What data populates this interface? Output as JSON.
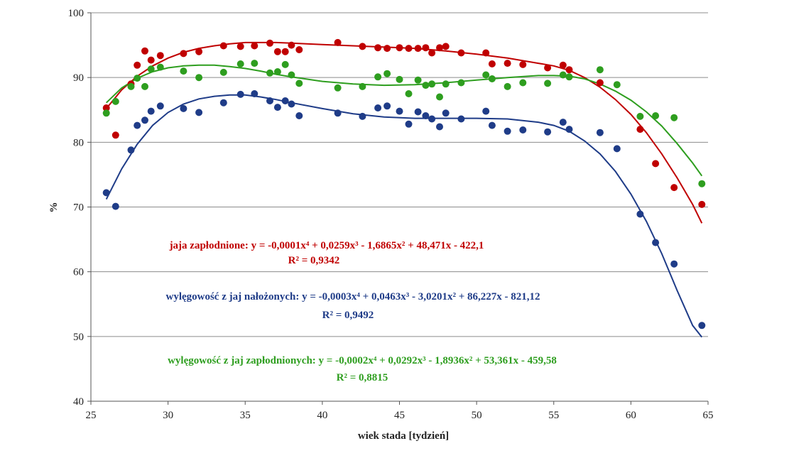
{
  "chart_data": {
    "type": "scatter",
    "title": "",
    "xlabel": "wiek stada [tydzień]",
    "ylabel": "%",
    "xlim": [
      25,
      65
    ],
    "ylim": [
      40,
      100
    ],
    "xticks": [
      25,
      30,
      35,
      40,
      45,
      50,
      55,
      60,
      65
    ],
    "yticks": [
      40,
      50,
      60,
      70,
      80,
      90,
      100
    ],
    "grid": "horizontal",
    "legend": "none",
    "series": [
      {
        "id": "red",
        "color": "#c00000",
        "equation": "jaja zapłodnione: y = -0,0001x⁴ + 0,0259x³ - 1,6865x² + 48,471x - 422,1",
        "r2": "R² = 0,9342",
        "coefficients": [
          -0.0001,
          0.0259,
          -1.6865,
          48.471,
          -422.1
        ],
        "points": [
          [
            26.0,
            85.3
          ],
          [
            26.6,
            81.1
          ],
          [
            27.6,
            89.0
          ],
          [
            28.0,
            91.9
          ],
          [
            28.5,
            94.1
          ],
          [
            28.9,
            92.7
          ],
          [
            29.5,
            93.4
          ],
          [
            31.0,
            93.7
          ],
          [
            32.0,
            94.0
          ],
          [
            33.6,
            94.9
          ],
          [
            34.7,
            94.8
          ],
          [
            35.6,
            94.9
          ],
          [
            36.6,
            95.3
          ],
          [
            37.1,
            94.0
          ],
          [
            37.6,
            94.0
          ],
          [
            38.0,
            95.0
          ],
          [
            38.5,
            94.3
          ],
          [
            41.0,
            95.4
          ],
          [
            42.6,
            94.8
          ],
          [
            43.6,
            94.6
          ],
          [
            44.2,
            94.5
          ],
          [
            45.0,
            94.6
          ],
          [
            45.6,
            94.5
          ],
          [
            46.2,
            94.5
          ],
          [
            46.7,
            94.6
          ],
          [
            47.1,
            93.8
          ],
          [
            47.6,
            94.6
          ],
          [
            48.0,
            94.8
          ],
          [
            49.0,
            93.8
          ],
          [
            50.6,
            93.8
          ],
          [
            51.0,
            92.1
          ],
          [
            52.0,
            92.2
          ],
          [
            53.0,
            92.0
          ],
          [
            54.6,
            91.5
          ],
          [
            55.6,
            91.9
          ],
          [
            56.0,
            91.2
          ],
          [
            58.0,
            89.2
          ],
          [
            60.6,
            82.0
          ],
          [
            61.6,
            76.7
          ],
          [
            62.8,
            73.0
          ],
          [
            64.6,
            70.4
          ]
        ]
      },
      {
        "id": "blue",
        "color": "#1f3c88",
        "equation": "wylęgowość z jaj nałożonych: y = -0,0003x⁴ + 0,0463x³ - 3,0201x² + 86,227x - 821,12",
        "r2": "R² = 0,9492",
        "coefficients": [
          -0.0003,
          0.0463,
          -3.0201,
          86.227,
          -821.12
        ],
        "points": [
          [
            26.0,
            72.2
          ],
          [
            26.6,
            70.1
          ],
          [
            27.6,
            78.8
          ],
          [
            28.0,
            82.6
          ],
          [
            28.5,
            83.4
          ],
          [
            28.9,
            84.8
          ],
          [
            29.5,
            85.6
          ],
          [
            31.0,
            85.2
          ],
          [
            32.0,
            84.6
          ],
          [
            33.6,
            86.1
          ],
          [
            34.7,
            87.4
          ],
          [
            35.6,
            87.5
          ],
          [
            36.6,
            86.4
          ],
          [
            37.1,
            85.4
          ],
          [
            37.6,
            86.4
          ],
          [
            38.0,
            85.9
          ],
          [
            38.5,
            84.1
          ],
          [
            41.0,
            84.5
          ],
          [
            42.6,
            84.0
          ],
          [
            43.6,
            85.3
          ],
          [
            44.2,
            85.6
          ],
          [
            45.0,
            84.8
          ],
          [
            45.6,
            82.8
          ],
          [
            46.2,
            84.7
          ],
          [
            46.7,
            84.1
          ],
          [
            47.1,
            83.6
          ],
          [
            47.6,
            82.4
          ],
          [
            48.0,
            84.5
          ],
          [
            49.0,
            83.6
          ],
          [
            50.6,
            84.8
          ],
          [
            51.0,
            82.6
          ],
          [
            52.0,
            81.7
          ],
          [
            53.0,
            81.9
          ],
          [
            54.6,
            81.6
          ],
          [
            55.6,
            83.1
          ],
          [
            56.0,
            82.0
          ],
          [
            58.0,
            81.5
          ],
          [
            59.1,
            79.0
          ],
          [
            60.6,
            68.9
          ],
          [
            61.6,
            64.5
          ],
          [
            62.8,
            61.2
          ],
          [
            64.6,
            51.7
          ]
        ]
      },
      {
        "id": "green",
        "color": "#2e9e1f",
        "equation": "wylęgowość z jaj zapłodnionych: y = -0,0002x⁴ + 0,0292x³ - 1,8936x² + 53,361x - 459,58",
        "r2": "R² = 0,8815",
        "coefficients": [
          -0.0002,
          0.0292,
          -1.8936,
          53.361,
          -459.58
        ],
        "points": [
          [
            26.0,
            84.5
          ],
          [
            26.6,
            86.3
          ],
          [
            27.6,
            88.6
          ],
          [
            28.0,
            89.9
          ],
          [
            28.5,
            88.6
          ],
          [
            28.9,
            91.3
          ],
          [
            29.5,
            91.6
          ],
          [
            31.0,
            91.0
          ],
          [
            32.0,
            90.0
          ],
          [
            33.6,
            90.8
          ],
          [
            34.7,
            92.1
          ],
          [
            35.6,
            92.2
          ],
          [
            36.6,
            90.7
          ],
          [
            37.1,
            90.9
          ],
          [
            37.6,
            92.0
          ],
          [
            38.0,
            90.4
          ],
          [
            38.5,
            89.1
          ],
          [
            41.0,
            88.4
          ],
          [
            42.6,
            88.6
          ],
          [
            43.6,
            90.1
          ],
          [
            44.2,
            90.6
          ],
          [
            45.0,
            89.7
          ],
          [
            45.6,
            87.5
          ],
          [
            46.2,
            89.6
          ],
          [
            46.7,
            88.8
          ],
          [
            47.1,
            89.0
          ],
          [
            47.6,
            87.0
          ],
          [
            48.0,
            89.0
          ],
          [
            49.0,
            89.2
          ],
          [
            50.6,
            90.4
          ],
          [
            51.0,
            89.8
          ],
          [
            52.0,
            88.6
          ],
          [
            53.0,
            89.2
          ],
          [
            54.6,
            89.1
          ],
          [
            55.6,
            90.4
          ],
          [
            56.0,
            90.1
          ],
          [
            58.0,
            91.2
          ],
          [
            59.1,
            88.9
          ],
          [
            60.6,
            84.0
          ],
          [
            61.6,
            84.1
          ],
          [
            62.8,
            83.8
          ],
          [
            64.6,
            73.6
          ]
        ]
      }
    ],
    "fit_lines": {
      "red": [
        [
          26.0,
          85.2
        ],
        [
          27.0,
          88.1
        ],
        [
          28.0,
          90.2
        ],
        [
          29.0,
          91.8
        ],
        [
          30.0,
          93.0
        ],
        [
          31.0,
          93.9
        ],
        [
          32.0,
          94.5
        ],
        [
          33.0,
          94.9
        ],
        [
          34.0,
          95.2
        ],
        [
          35.0,
          95.4
        ],
        [
          36.0,
          95.4
        ],
        [
          37.0,
          95.4
        ],
        [
          38.0,
          95.3
        ],
        [
          39.0,
          95.2
        ],
        [
          40.0,
          95.1
        ],
        [
          42.0,
          94.9
        ],
        [
          44.0,
          94.7
        ],
        [
          46.0,
          94.5
        ],
        [
          48.0,
          94.1
        ],
        [
          50.0,
          93.6
        ],
        [
          52.0,
          93.0
        ],
        [
          54.0,
          92.2
        ],
        [
          55.0,
          91.8
        ],
        [
          56.0,
          91.1
        ],
        [
          57.0,
          90.0
        ],
        [
          58.0,
          88.5
        ],
        [
          59.0,
          86.6
        ],
        [
          60.0,
          84.3
        ],
        [
          61.0,
          81.5
        ],
        [
          62.0,
          78.2
        ],
        [
          63.0,
          74.5
        ],
        [
          64.0,
          70.4
        ],
        [
          64.6,
          67.5
        ]
      ],
      "blue": [
        [
          26.0,
          71.2
        ],
        [
          27.0,
          75.9
        ],
        [
          28.0,
          79.7
        ],
        [
          29.0,
          82.6
        ],
        [
          30.0,
          84.6
        ],
        [
          31.0,
          85.9
        ],
        [
          32.0,
          86.7
        ],
        [
          33.0,
          87.1
        ],
        [
          34.0,
          87.3
        ],
        [
          35.0,
          87.3
        ],
        [
          36.0,
          87.0
        ],
        [
          37.0,
          86.6
        ],
        [
          38.0,
          86.1
        ],
        [
          40.0,
          85.2
        ],
        [
          42.0,
          84.4
        ],
        [
          44.0,
          83.9
        ],
        [
          46.0,
          83.7
        ],
        [
          48.0,
          83.7
        ],
        [
          50.0,
          83.7
        ],
        [
          52.0,
          83.6
        ],
        [
          54.0,
          83.1
        ],
        [
          55.0,
          82.6
        ],
        [
          56.0,
          81.7
        ],
        [
          57.0,
          80.2
        ],
        [
          58.0,
          78.2
        ],
        [
          59.0,
          75.5
        ],
        [
          60.0,
          72.0
        ],
        [
          61.0,
          67.8
        ],
        [
          62.0,
          62.8
        ],
        [
          63.0,
          57.1
        ],
        [
          64.0,
          51.7
        ],
        [
          64.6,
          49.9
        ]
      ],
      "green": [
        [
          26.0,
          86.1
        ],
        [
          27.0,
          88.4
        ],
        [
          28.0,
          89.9
        ],
        [
          29.0,
          90.9
        ],
        [
          30.0,
          91.5
        ],
        [
          31.0,
          91.8
        ],
        [
          32.0,
          91.9
        ],
        [
          33.0,
          91.9
        ],
        [
          34.0,
          91.7
        ],
        [
          35.0,
          91.4
        ],
        [
          36.0,
          91.0
        ],
        [
          37.0,
          90.5
        ],
        [
          38.0,
          90.1
        ],
        [
          40.0,
          89.4
        ],
        [
          42.0,
          89.0
        ],
        [
          44.0,
          88.8
        ],
        [
          46.0,
          88.9
        ],
        [
          48.0,
          89.2
        ],
        [
          50.0,
          89.6
        ],
        [
          52.0,
          90.0
        ],
        [
          54.0,
          90.3
        ],
        [
          55.0,
          90.3
        ],
        [
          56.0,
          90.2
        ],
        [
          57.0,
          89.8
        ],
        [
          58.0,
          89.0
        ],
        [
          59.0,
          87.9
        ],
        [
          60.0,
          86.5
        ],
        [
          61.0,
          84.7
        ],
        [
          62.0,
          82.5
        ],
        [
          63.0,
          79.8
        ],
        [
          64.0,
          76.8
        ],
        [
          64.6,
          74.8
        ]
      ]
    }
  }
}
